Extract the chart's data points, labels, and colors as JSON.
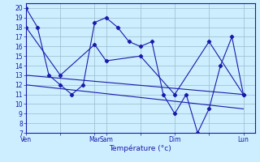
{
  "xlabel": "Température (°c)",
  "background_color": "#cceeff",
  "grid_color": "#99bbcc",
  "line_color": "#1a1aaa",
  "ylim": [
    7,
    20.5
  ],
  "yticks": [
    7,
    8,
    9,
    10,
    11,
    12,
    13,
    14,
    15,
    16,
    17,
    18,
    19,
    20
  ],
  "xtick_labels": [
    "Ven",
    "",
    "Mar",
    "Sam",
    "",
    "Dim",
    "",
    "Lun"
  ],
  "xtick_positions": [
    0,
    24,
    48,
    56,
    80,
    104,
    128,
    152
  ],
  "xlim": [
    0,
    160
  ],
  "line1_x": [
    0,
    8,
    16,
    24,
    32,
    40,
    48,
    56,
    64,
    72,
    80,
    88,
    96,
    104,
    112,
    120,
    128,
    136,
    144,
    152
  ],
  "line1_y": [
    20,
    18,
    13,
    12,
    11,
    12,
    18.5,
    19,
    18,
    16.5,
    16,
    16.5,
    11,
    9,
    11,
    7,
    9.5,
    14,
    17,
    11
  ],
  "line2_x": [
    0,
    24,
    48,
    56,
    80,
    104,
    128,
    152
  ],
  "line2_y": [
    18,
    13,
    16.2,
    14.5,
    15,
    11,
    16.5,
    11
  ],
  "line3_x": [
    0,
    152
  ],
  "line3_y": [
    13,
    11
  ],
  "line4_x": [
    0,
    152
  ],
  "line4_y": [
    12,
    9.5
  ]
}
